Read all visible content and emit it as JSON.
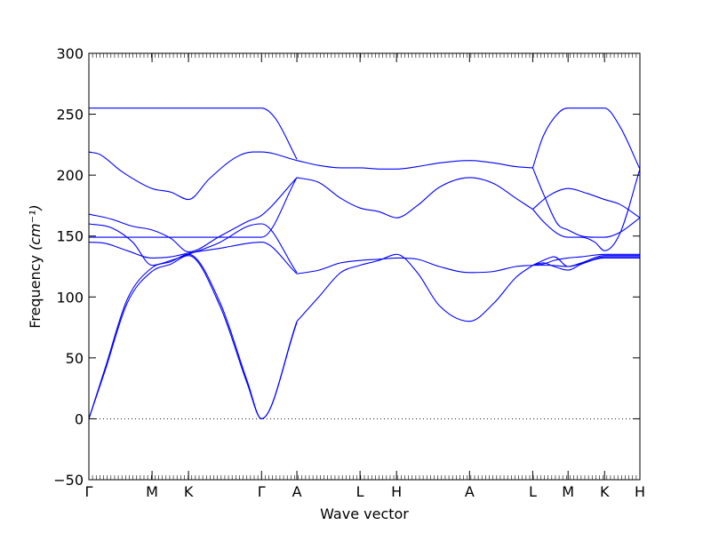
{
  "chart_data": {
    "type": "line",
    "title": "",
    "xlabel": "Wave vector",
    "ylabel": "Frequency ",
    "ylabel_unit": "(cm⁻¹)",
    "ylim": [
      -50,
      300
    ],
    "yticks": [
      -50,
      0,
      50,
      100,
      150,
      200,
      250,
      300
    ],
    "zero_line": "dotted",
    "grid": false,
    "line_color": "#0000ff",
    "kpoints": [
      {
        "label": "Γ",
        "x": 0
      },
      {
        "label": "M",
        "x": 0.577
      },
      {
        "label": "K",
        "x": 0.91
      },
      {
        "label": "Γ",
        "x": 1.577
      },
      {
        "label": "A",
        "x": 1.9
      },
      {
        "label": "L",
        "x": 2.477
      },
      {
        "label": "H",
        "x": 2.81
      },
      {
        "label": "A",
        "x": 3.477
      },
      {
        "label": "L",
        "x": 4.054
      },
      {
        "label": "M",
        "x": 4.377
      },
      {
        "label": "K",
        "x": 4.71
      },
      {
        "label": "H",
        "x": 5.033
      }
    ],
    "bands": [
      {
        "x": [
          0,
          0.15,
          0.35,
          0.577,
          0.75,
          0.91,
          1.2,
          1.45,
          1.577,
          1.9
        ],
        "y": [
          0,
          40,
          95,
          121,
          127,
          134,
          92,
          28,
          0,
          79
        ]
      },
      {
        "x": [
          0,
          0.15,
          0.35,
          0.577,
          0.75,
          0.91,
          1.2,
          1.45,
          1.577,
          1.9
        ],
        "y": [
          0,
          42,
          98,
          124,
          129,
          135,
          95,
          30,
          0,
          80
        ]
      },
      {
        "x": [
          0,
          0.15,
          0.35,
          0.577,
          0.75,
          0.91,
          1.2,
          1.45,
          1.577,
          1.9
        ],
        "y": [
          145,
          144,
          138,
          132,
          133,
          136,
          140,
          144,
          145,
          119
        ]
      },
      {
        "x": [
          0,
          0.2,
          0.4,
          0.577,
          0.75,
          0.91,
          1.2,
          1.45,
          1.577,
          1.9
        ],
        "y": [
          160,
          157,
          145,
          126,
          130,
          135,
          145,
          158,
          160,
          120
        ]
      },
      {
        "x": [
          0,
          0.3,
          0.577,
          0.91,
          1.2,
          1.577,
          1.9
        ],
        "y": [
          149,
          149,
          149,
          149,
          149,
          149,
          198
        ]
      },
      {
        "x": [
          0,
          0.2,
          0.4,
          0.577,
          0.75,
          0.91,
          1.2,
          1.45,
          1.577,
          1.9
        ],
        "y": [
          168,
          164,
          158,
          155,
          148,
          137,
          150,
          162,
          167,
          198
        ]
      },
      {
        "x": [
          0,
          0.1,
          0.3,
          0.577,
          0.75,
          0.91,
          1.1,
          1.35,
          1.5,
          1.577,
          1.9
        ],
        "y": [
          219,
          217,
          203,
          189,
          186,
          180,
          197,
          215,
          219,
          219,
          212
        ]
      },
      {
        "x": [
          0,
          0.577,
          0.91,
          1.577,
          1.7,
          1.9
        ],
        "y": [
          255,
          255,
          255,
          255,
          247,
          213
        ]
      },
      {
        "x": [
          1.9,
          2.1,
          2.3,
          2.477,
          2.65,
          2.81,
          3.0,
          3.2,
          3.477,
          3.7,
          3.9,
          4.054
        ],
        "y": [
          212,
          208,
          206,
          206,
          205,
          205,
          207,
          210,
          212,
          210,
          207,
          206
        ]
      },
      {
        "x": [
          1.9,
          2.1,
          2.3,
          2.477,
          2.65,
          2.81,
          3.0,
          3.2,
          3.477,
          3.7,
          3.9,
          4.054
        ],
        "y": [
          198,
          194,
          181,
          173,
          170,
          165,
          175,
          190,
          198,
          193,
          181,
          172
        ]
      },
      {
        "x": [
          1.9,
          2.1,
          2.3,
          2.477,
          2.65,
          2.81,
          3.0,
          3.2,
          3.477,
          3.7,
          3.9,
          4.054
        ],
        "y": [
          119,
          122,
          128,
          130,
          131,
          132,
          131,
          125,
          120,
          121,
          125,
          126
        ]
      },
      {
        "x": [
          1.9,
          2.1,
          2.3,
          2.477,
          2.65,
          2.81,
          3.0,
          3.2,
          3.477,
          3.7,
          3.9,
          4.054
        ],
        "y": [
          80,
          100,
          120,
          126,
          130,
          135,
          120,
          93,
          80,
          95,
          116,
          126
        ]
      },
      {
        "x": [
          4.054,
          4.15,
          4.3,
          4.377,
          4.5,
          4.65,
          4.71,
          4.85,
          5.033
        ],
        "y": [
          206,
          232,
          252,
          255,
          255,
          255,
          255,
          240,
          205
        ]
      },
      {
        "x": [
          4.054,
          4.2,
          4.377,
          4.55,
          4.71,
          4.85,
          5.033
        ],
        "y": [
          172,
          183,
          189,
          185,
          180,
          176,
          165
        ]
      },
      {
        "x": [
          4.054,
          4.15,
          4.28,
          4.377,
          4.5,
          4.65,
          4.71,
          4.85,
          5.033
        ],
        "y": [
          206,
          185,
          160,
          155,
          150,
          149,
          149,
          153,
          165
        ]
      },
      {
        "x": [
          4.054,
          4.15,
          4.28,
          4.377,
          4.5,
          4.62,
          4.71,
          4.85,
          5.033
        ],
        "y": [
          172,
          162,
          152,
          149,
          149,
          145,
          138,
          152,
          205
        ]
      },
      {
        "x": [
          4.054,
          4.15,
          4.25,
          4.377,
          4.5,
          4.71,
          5.033
        ],
        "y": [
          126,
          127,
          130,
          132,
          133,
          135,
          135
        ]
      },
      {
        "x": [
          4.054,
          4.15,
          4.25,
          4.377,
          4.5,
          4.71,
          5.033
        ],
        "y": [
          126,
          128,
          125,
          122,
          127,
          132,
          132
        ]
      },
      {
        "x": [
          4.054,
          4.15,
          4.25,
          4.377,
          4.5,
          4.71,
          5.033
        ],
        "y": [
          126,
          130,
          133,
          125,
          128,
          134,
          134
        ]
      },
      {
        "x": [
          4.054,
          4.2,
          4.377,
          4.55,
          4.71,
          5.033
        ],
        "y": [
          126,
          126,
          125,
          129,
          133,
          133
        ]
      }
    ]
  }
}
